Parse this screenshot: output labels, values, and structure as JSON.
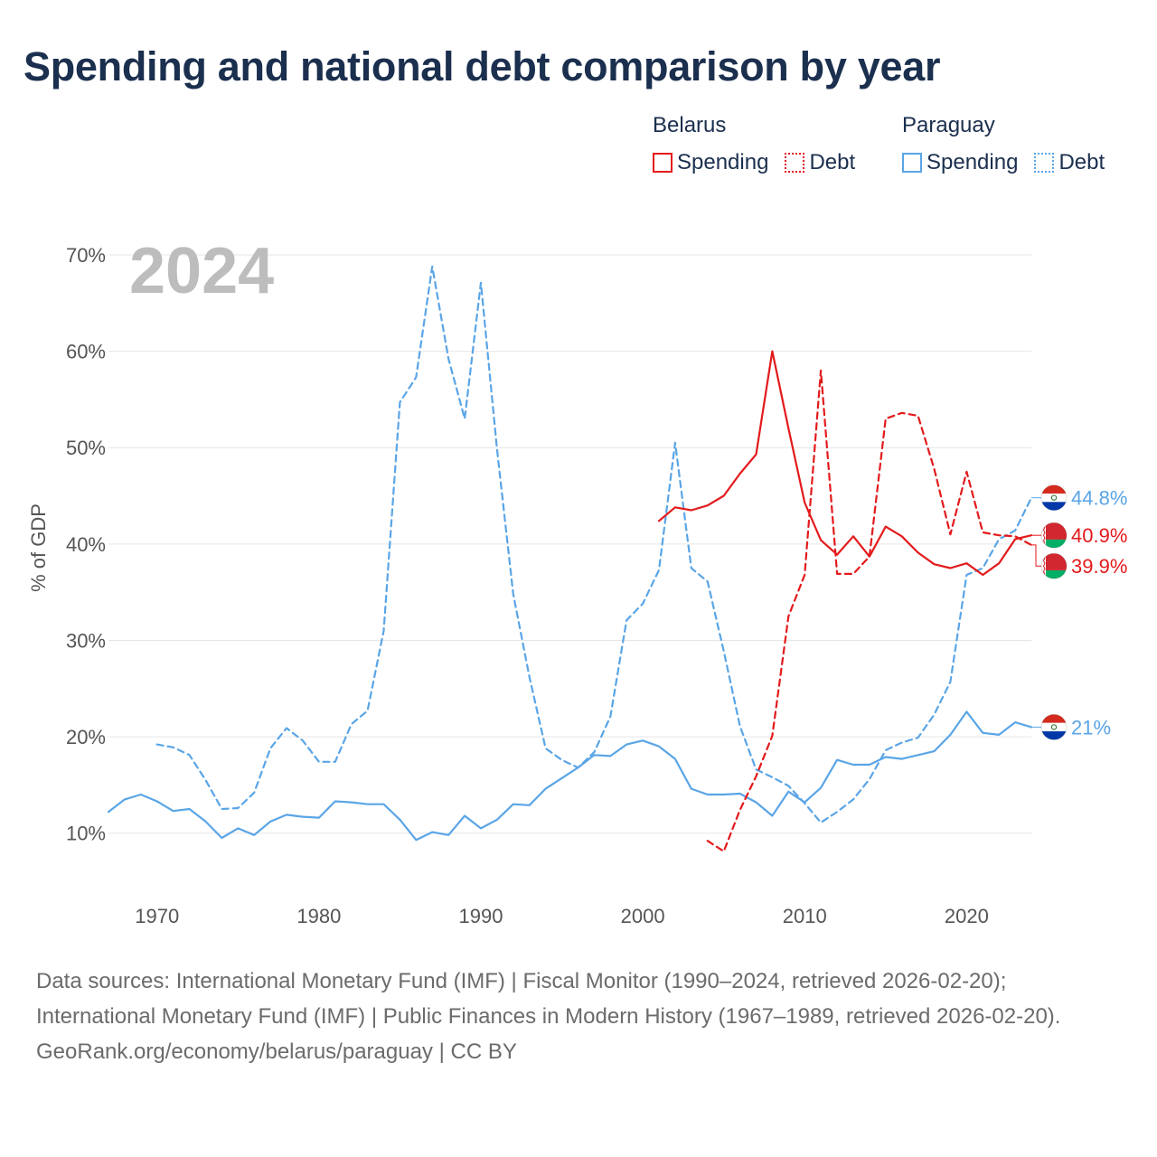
{
  "title": "Spending and national debt comparison by year",
  "legend": {
    "groups": [
      {
        "country": "Belarus",
        "color": "#e31a1c",
        "spending_label": "Spending",
        "debt_label": "Debt"
      },
      {
        "country": "Paraguay",
        "color": "#5aa5e6",
        "spending_label": "Spending",
        "debt_label": "Debt"
      }
    ]
  },
  "chart_data": {
    "type": "line",
    "title": "Spending and national debt comparison by year",
    "xlabel": "",
    "ylabel": "% of GDP",
    "xlim": [
      1967,
      2024
    ],
    "ylim": [
      5,
      73
    ],
    "x_ticks": [
      1970,
      1980,
      1990,
      2000,
      2010,
      2020
    ],
    "y_ticks": [
      10,
      20,
      30,
      40,
      50,
      60,
      70
    ],
    "y_tick_labels": [
      "10%",
      "20%",
      "30%",
      "40%",
      "50%",
      "60%",
      "70%"
    ],
    "grid": true,
    "current_year": "2024",
    "series": [
      {
        "name": "Paraguay Debt",
        "country": "Paraguay",
        "indicator": "Debt",
        "color": "#5aa5e6",
        "dashed": true,
        "x": [
          1970,
          1971,
          1972,
          1973,
          1974,
          1975,
          1976,
          1977,
          1978,
          1979,
          1980,
          1981,
          1982,
          1983,
          1984,
          1985,
          1986,
          1987,
          1988,
          1989,
          1990,
          1991,
          1992,
          1993,
          1994,
          1995,
          1996,
          1997,
          1998,
          1999,
          2000,
          2001,
          2002,
          2003,
          2004,
          2005,
          2006,
          2007,
          2008,
          2009,
          2010,
          2011,
          2012,
          2013,
          2014,
          2015,
          2016,
          2017,
          2018,
          2019,
          2020,
          2021,
          2022,
          2023,
          2024
        ],
        "y": [
          19.2,
          18.9,
          18.1,
          15.5,
          12.5,
          12.6,
          14.2,
          18.8,
          20.9,
          19.6,
          17.4,
          17.4,
          21.3,
          22.7,
          31.0,
          54.7,
          57.3,
          68.8,
          59.2,
          53.0,
          67.1,
          49.8,
          34.8,
          26.2,
          18.8,
          17.6,
          16.8,
          18.4,
          22.1,
          32.1,
          33.8,
          37.3,
          50.5,
          37.5,
          36.1,
          28.9,
          21.1,
          16.6,
          15.8,
          14.9,
          13.1,
          11.1,
          12.2,
          13.5,
          15.6,
          18.6,
          19.4,
          19.9,
          22.3,
          25.7,
          36.8,
          37.5,
          40.5,
          41.4,
          44.8
        ]
      },
      {
        "name": "Paraguay Spending",
        "country": "Paraguay",
        "indicator": "Spending",
        "color": "#5aa5e6",
        "dashed": false,
        "x": [
          1967,
          1968,
          1969,
          1970,
          1971,
          1972,
          1973,
          1974,
          1975,
          1976,
          1977,
          1978,
          1979,
          1980,
          1981,
          1982,
          1983,
          1984,
          1985,
          1986,
          1987,
          1988,
          1989,
          1990,
          1991,
          1992,
          1993,
          1994,
          1995,
          1996,
          1997,
          1998,
          1999,
          2000,
          2001,
          2002,
          2003,
          2004,
          2005,
          2006,
          2007,
          2008,
          2009,
          2010,
          2011,
          2012,
          2013,
          2014,
          2015,
          2016,
          2017,
          2018,
          2019,
          2020,
          2021,
          2022,
          2023,
          2024
        ],
        "y": [
          12.2,
          13.5,
          14.0,
          13.3,
          12.3,
          12.5,
          11.2,
          9.5,
          10.5,
          9.8,
          11.2,
          11.9,
          11.7,
          11.6,
          13.3,
          13.2,
          13.0,
          13.0,
          11.4,
          9.3,
          10.1,
          9.8,
          11.8,
          10.5,
          11.4,
          13.0,
          12.9,
          14.6,
          15.7,
          16.8,
          18.1,
          18.0,
          19.2,
          19.6,
          19.0,
          17.7,
          14.6,
          14.0,
          14.0,
          14.1,
          13.2,
          11.8,
          14.3,
          13.2,
          14.7,
          17.6,
          17.1,
          17.1,
          17.9,
          17.7,
          18.1,
          18.5,
          20.2,
          22.6,
          20.4,
          20.2,
          21.5,
          21.0
        ]
      },
      {
        "name": "Belarus Spending",
        "country": "Belarus",
        "indicator": "Spending",
        "color": "#e31a1c",
        "dashed": false,
        "x": [
          2001,
          2002,
          2003,
          2004,
          2005,
          2006,
          2007,
          2008,
          2009,
          2010,
          2011,
          2012,
          2013,
          2014,
          2015,
          2016,
          2017,
          2018,
          2019,
          2020,
          2021,
          2022,
          2023,
          2024
        ],
        "y": [
          42.4,
          43.8,
          43.5,
          44.0,
          45.0,
          47.3,
          49.3,
          60.0,
          52.0,
          44.3,
          40.4,
          38.9,
          40.8,
          38.7,
          41.8,
          40.8,
          39.1,
          37.9,
          37.5,
          38.0,
          36.8,
          38.0,
          40.5,
          40.9
        ]
      },
      {
        "name": "Belarus Debt",
        "country": "Belarus",
        "indicator": "Debt",
        "color": "#e31a1c",
        "dashed": true,
        "x": [
          2004,
          2005,
          2006,
          2007,
          2008,
          2009,
          2010,
          2011,
          2012,
          2013,
          2014,
          2015,
          2016,
          2017,
          2018,
          2019,
          2020,
          2021,
          2022,
          2023,
          2024
        ],
        "y": [
          9.2,
          8.1,
          12.4,
          15.9,
          20.1,
          32.5,
          36.8,
          58.0,
          36.9,
          36.9,
          38.7,
          53.0,
          53.6,
          53.3,
          47.8,
          41.0,
          47.5,
          41.2,
          40.9,
          40.8,
          39.9
        ]
      }
    ],
    "end_labels": [
      {
        "country": "Paraguay",
        "indicator": "Debt",
        "value": 44.8,
        "text": "44.8%",
        "color": "#5aa5e6",
        "flag": "paraguay"
      },
      {
        "country": "Belarus",
        "indicator": "Spending",
        "value": 40.9,
        "text": "40.9%",
        "color": "#e31a1c",
        "flag": "belarus"
      },
      {
        "country": "Belarus",
        "indicator": "Debt",
        "value": 39.9,
        "text": "39.9%",
        "color": "#e31a1c",
        "flag": "belarus"
      },
      {
        "country": "Paraguay",
        "indicator": "Spending",
        "value": 21.0,
        "text": "21%",
        "color": "#5aa5e6",
        "flag": "paraguay"
      }
    ]
  },
  "footer": {
    "sources": "Data sources: International Monetary Fund (IMF) | Fiscal Monitor (1990–2024, retrieved 2026-02-20); International Monetary Fund (IMF) | Public Finances in Modern History (1967–1989, retrieved 2026-02-20).",
    "credit": "GeoRank.org/economy/belarus/paraguay | CC BY"
  }
}
